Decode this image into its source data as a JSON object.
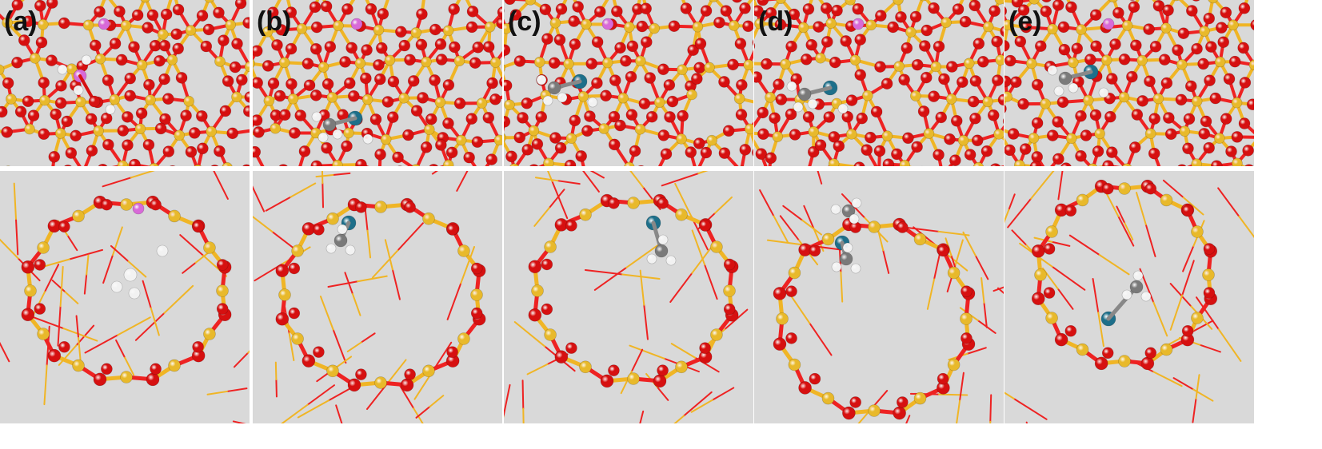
{
  "figure": {
    "background": "#ffffff",
    "panel_background": "#d9d9d9",
    "atom_colors": {
      "silicon": "#e8b92b",
      "oxygen": "#d61010",
      "phosphorus": "#d86ad8",
      "hydrogen": "#f2f2f2",
      "carbon": "#7a7a7a",
      "metal": "#1d6f8a"
    },
    "bond_colors": {
      "framework_oxygen": "#ee2222",
      "framework_silicon": "#f0b525"
    }
  },
  "panels": [
    {
      "label": "(a)",
      "adsorbate": "none"
    },
    {
      "label": "(b)",
      "adsorbate": "metal-methyl"
    },
    {
      "label": "(c)",
      "adsorbate": "metal-methyl"
    },
    {
      "label": "(d)",
      "adsorbate": "metal-methyl"
    },
    {
      "label": "(e)",
      "adsorbate": "metal-methyl"
    }
  ]
}
